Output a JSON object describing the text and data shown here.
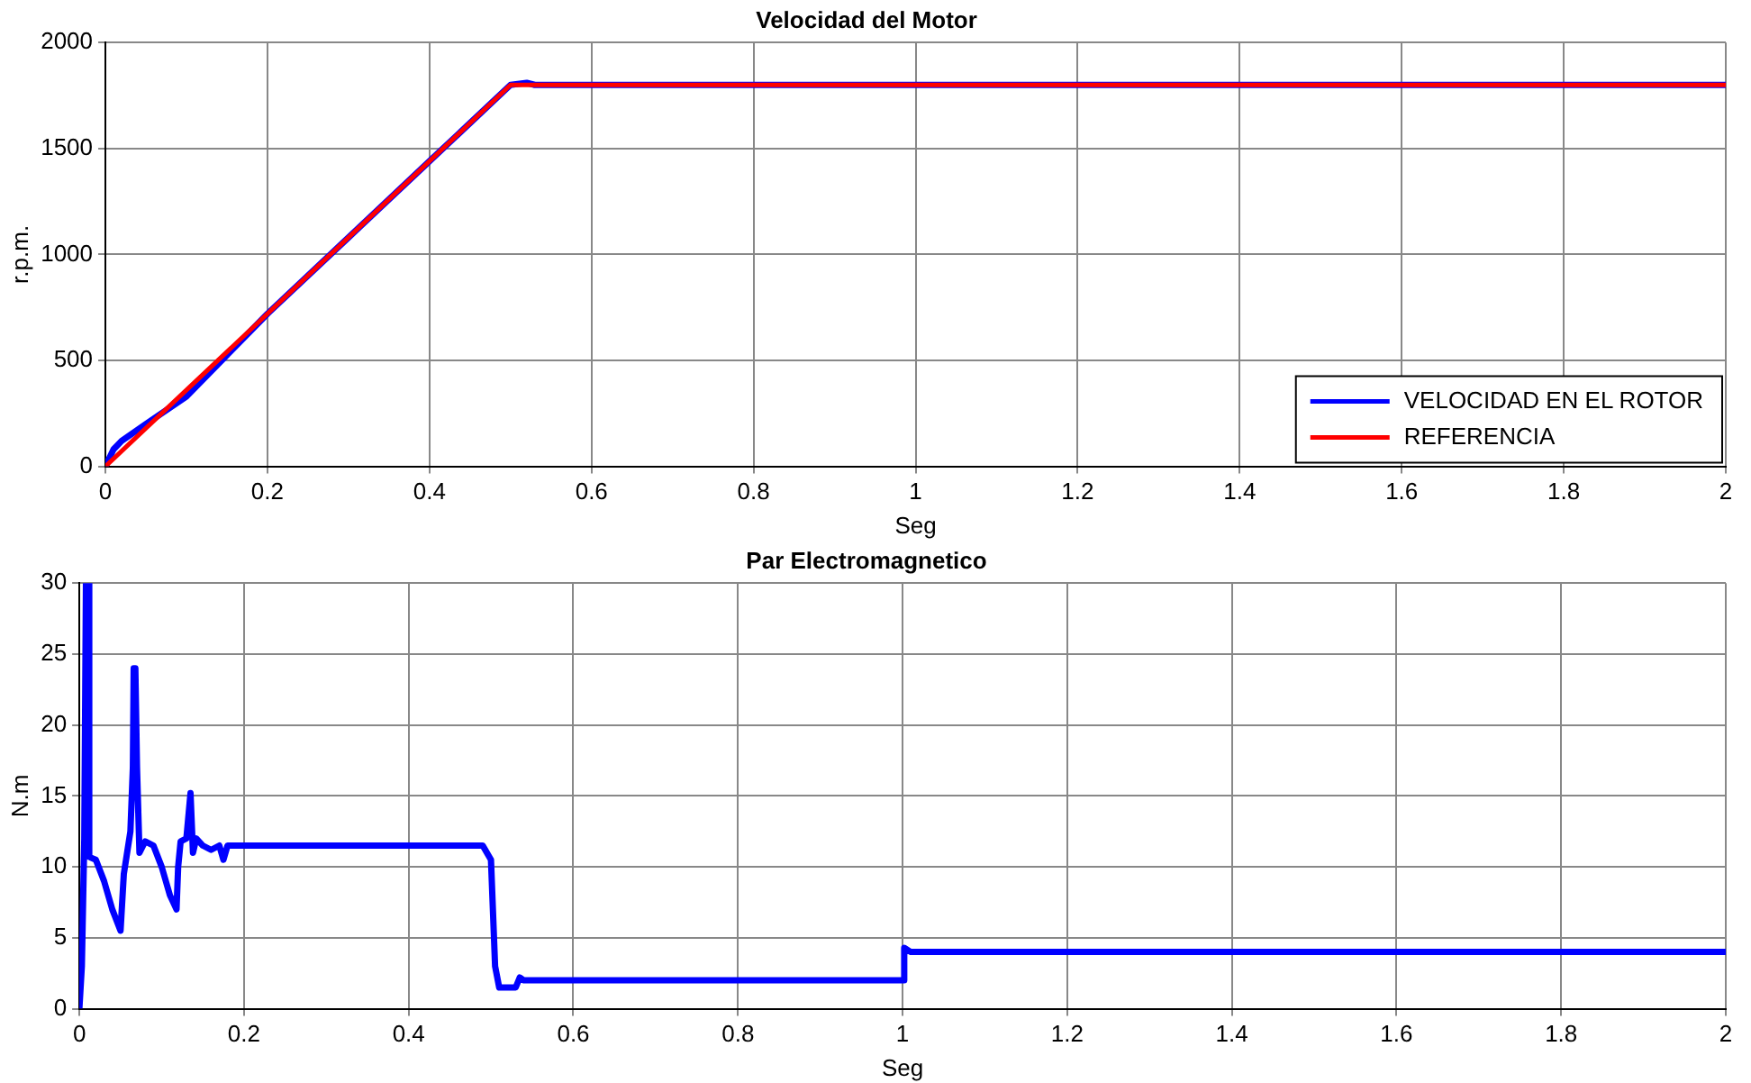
{
  "chart_data": [
    {
      "type": "line",
      "title": "Velocidad del Motor",
      "xlabel": "Seg",
      "ylabel": "r.p.m.",
      "xlim": [
        0,
        2
      ],
      "xticks": [
        0,
        0.2,
        0.4,
        0.6,
        0.8,
        1,
        1.2,
        1.4,
        1.6,
        1.8,
        2
      ],
      "ylim": [
        0,
        2000
      ],
      "yticks": [
        0,
        500,
        1000,
        1500,
        2000
      ],
      "grid": true,
      "legend": "bottom right",
      "series": [
        {
          "name": "VELOCIDAD EN EL ROTOR",
          "color": "#0000ff",
          "x": [
            0,
            0.01,
            0.02,
            0.05,
            0.1,
            0.2,
            0.3,
            0.4,
            0.5,
            0.52,
            0.53,
            1,
            2
          ],
          "values": [
            0,
            80,
            120,
            200,
            330,
            720,
            1080,
            1440,
            1800,
            1810,
            1800,
            1800,
            1800
          ]
        },
        {
          "name": "REFERENCIA",
          "color": "#ff0000",
          "x": [
            0,
            0.5,
            2
          ],
          "values": [
            0,
            1800,
            1800
          ]
        }
      ]
    },
    {
      "type": "line",
      "title": "Par Electromagnetico",
      "xlabel": "Seg",
      "ylabel": "N.m",
      "xlim": [
        0,
        2
      ],
      "xticks": [
        0,
        0.2,
        0.4,
        0.6,
        0.8,
        1,
        1.2,
        1.4,
        1.6,
        1.8,
        2
      ],
      "ylim": [
        0,
        30
      ],
      "yticks": [
        0,
        5,
        10,
        15,
        20,
        25,
        30
      ],
      "grid": true,
      "legend": false,
      "series": [
        {
          "color": "#0000ff",
          "x": [
            0,
            0.003,
            0.006,
            0.008,
            0.011,
            0.012,
            0.02,
            0.03,
            0.04,
            0.05,
            0.054,
            0.058,
            0.062,
            0.065,
            0.066,
            0.068,
            0.07,
            0.073,
            0.08,
            0.09,
            0.1,
            0.11,
            0.118,
            0.12,
            0.123,
            0.13,
            0.135,
            0.138,
            0.142,
            0.15,
            0.16,
            0.17,
            0.175,
            0.18,
            0.2,
            0.25,
            0.49,
            0.5,
            0.505,
            0.51,
            0.53,
            0.535,
            0.54,
            1,
            1.002,
            1.01,
            1.5,
            2
          ],
          "values": [
            0,
            3,
            12,
            30,
            30,
            10.7,
            10.5,
            9,
            7,
            5.5,
            9.5,
            11,
            12.5,
            17,
            24,
            24,
            17,
            11,
            11.8,
            11.5,
            10,
            8,
            7,
            10,
            11.8,
            12,
            15.2,
            11,
            12,
            11.5,
            11.2,
            11.5,
            10.5,
            11.5,
            11.5,
            11.5,
            11.5,
            10.5,
            3,
            1.5,
            1.5,
            2.2,
            2,
            2,
            4.3,
            4,
            4,
            4
          ]
        }
      ]
    }
  ]
}
